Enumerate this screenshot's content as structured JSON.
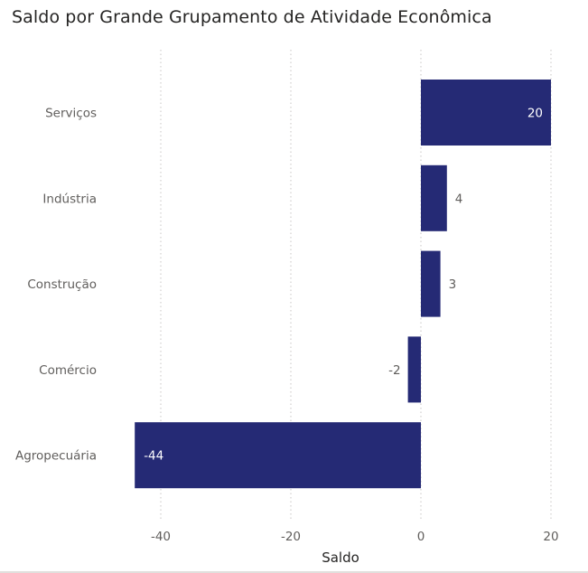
{
  "chart_data": {
    "type": "bar",
    "orientation": "horizontal",
    "title": "Saldo por Grande Grupamento de Atividade Econômica",
    "xlabel": "Saldo",
    "ylabel": "",
    "categories": [
      "Serviços",
      "Indústria",
      "Construção",
      "Comércio",
      "Agropecuária"
    ],
    "values": [
      20,
      4,
      3,
      -2,
      -44
    ],
    "data_labels": [
      "20",
      "4",
      "3",
      "-2",
      "-44"
    ],
    "xlim": [
      -44,
      20
    ],
    "x_ticks": [
      -40,
      -20,
      0,
      20
    ],
    "x_tick_labels": [
      "-40",
      "-20",
      "0",
      "20"
    ],
    "grid": "vertical dotted",
    "legend": "none",
    "colors": {
      "bar": "#252a75",
      "grid": "#c8c6c4",
      "label_inside": "#ffffff",
      "label_outside": "#605e5c"
    }
  }
}
